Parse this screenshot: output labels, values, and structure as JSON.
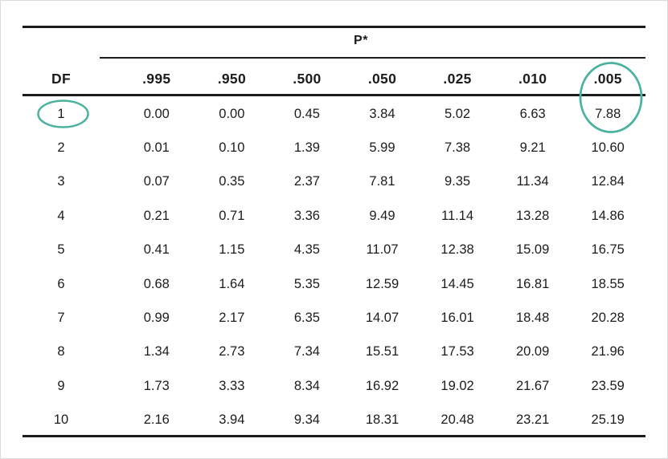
{
  "colors": {
    "background": "#ffffff",
    "text": "#1c1c1c",
    "rule": "#1c1c1c",
    "highlight": "#4bb2a0"
  },
  "table": {
    "spanner_label": "P*",
    "row_header_label": "DF"
  },
  "annotations": {
    "highlight_color": "#4bb2a0",
    "circled_df_value": "1",
    "circled_column_header": ".005",
    "circled_cell_value": "7.88"
  },
  "chart_data": {
    "type": "table",
    "spanner_header": "P*",
    "columns": [
      "DF",
      ".995",
      ".950",
      ".500",
      ".050",
      ".025",
      ".010",
      ".005"
    ],
    "rows": [
      [
        "1",
        "0.00",
        "0.00",
        "0.45",
        "3.84",
        "5.02",
        "6.63",
        "7.88"
      ],
      [
        "2",
        "0.01",
        "0.10",
        "1.39",
        "5.99",
        "7.38",
        "9.21",
        "10.60"
      ],
      [
        "3",
        "0.07",
        "0.35",
        "2.37",
        "7.81",
        "9.35",
        "11.34",
        "12.84"
      ],
      [
        "4",
        "0.21",
        "0.71",
        "3.36",
        "9.49",
        "11.14",
        "13.28",
        "14.86"
      ],
      [
        "5",
        "0.41",
        "1.15",
        "4.35",
        "11.07",
        "12.38",
        "15.09",
        "16.75"
      ],
      [
        "6",
        "0.68",
        "1.64",
        "5.35",
        "12.59",
        "14.45",
        "16.81",
        "18.55"
      ],
      [
        "7",
        "0.99",
        "2.17",
        "6.35",
        "14.07",
        "16.01",
        "18.48",
        "20.28"
      ],
      [
        "8",
        "1.34",
        "2.73",
        "7.34",
        "15.51",
        "17.53",
        "20.09",
        "21.96"
      ],
      [
        "9",
        "1.73",
        "3.33",
        "8.34",
        "16.92",
        "19.02",
        "21.67",
        "23.59"
      ],
      [
        "10",
        "2.16",
        "3.94",
        "9.34",
        "18.31",
        "20.48",
        "23.21",
        "25.19"
      ]
    ],
    "annotations": [
      "teal ellipse drawn around DF value 1 in first body row",
      "teal ellipse drawn around column header .005 extending down over value 7.88"
    ],
    "layout": "DF row-label column on left; seven probability columns under spanner header P*; horizontal rules above spanner, under spanner, under column headers, and below last row"
  }
}
